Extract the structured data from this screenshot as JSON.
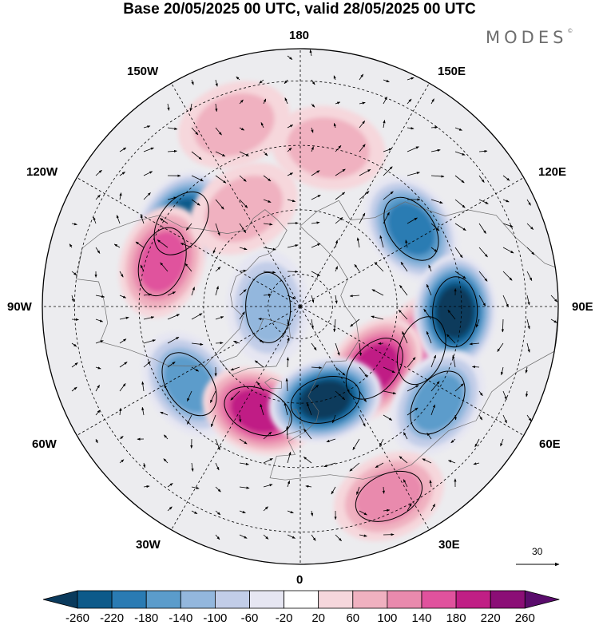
{
  "title": "Base 20/05/2025 00 UTC, valid 28/05/2025 00 UTC",
  "logo": "MODES",
  "logo_mark": "©",
  "longitude_labels": {
    "n180": "180",
    "w150": "150W",
    "e150": "150E",
    "w120": "120W",
    "e120": "120E",
    "w90": "90W",
    "e90": "90E",
    "w60": "60W",
    "e60": "60E",
    "w30": "30W",
    "e30": "30E",
    "s0": "0"
  },
  "wind_reference": {
    "value": "30"
  },
  "colorbar": {
    "ticks": [
      "-260",
      "-220",
      "-180",
      "-140",
      "-100",
      "-60",
      "-20",
      "20",
      "60",
      "100",
      "140",
      "180",
      "220",
      "260"
    ],
    "colors": [
      "#0a3a5c",
      "#0d5a8a",
      "#2a7bb3",
      "#5b9ccb",
      "#93b7dd",
      "#c2cde8",
      "#e6e6f2",
      "#ffffff",
      "#f6d7dc",
      "#f0b1c0",
      "#e98aad",
      "#e0529d",
      "#c01f85",
      "#8b0e76",
      "#5a0c6c"
    ]
  },
  "anomaly_centers": [
    {
      "kind": "low",
      "lon": -125,
      "lat": 45,
      "level": -220
    },
    {
      "kind": "low",
      "lon": 125,
      "lat": 48,
      "level": -180
    },
    {
      "kind": "high",
      "lon": -108,
      "lat": 45,
      "level": 140
    },
    {
      "kind": "high",
      "lon": 70,
      "lat": 50,
      "level": 160
    },
    {
      "kind": "low",
      "lon": -88,
      "lat": 80,
      "level": -100
    },
    {
      "kind": "low",
      "lon": 88,
      "lat": 42,
      "level": -260
    },
    {
      "kind": "high",
      "lon": 50,
      "lat": 60,
      "level": 180
    },
    {
      "kind": "low",
      "lon": -55,
      "lat": 48,
      "level": -140
    },
    {
      "kind": "high",
      "lon": -22,
      "lat": 55,
      "level": 180
    },
    {
      "kind": "low",
      "lon": 15,
      "lat": 60,
      "level": -260
    },
    {
      "kind": "low",
      "lon": 55,
      "lat": 38,
      "level": -140
    },
    {
      "kind": "high",
      "lon": 25,
      "lat": 25,
      "level": 100
    },
    {
      "kind": "high",
      "lon": 170,
      "lat": 40,
      "level": 60
    },
    {
      "kind": "high",
      "lon": -160,
      "lat": 30,
      "level": 60
    },
    {
      "kind": "high",
      "lon": -150,
      "lat": 55,
      "level": 60
    }
  ]
}
